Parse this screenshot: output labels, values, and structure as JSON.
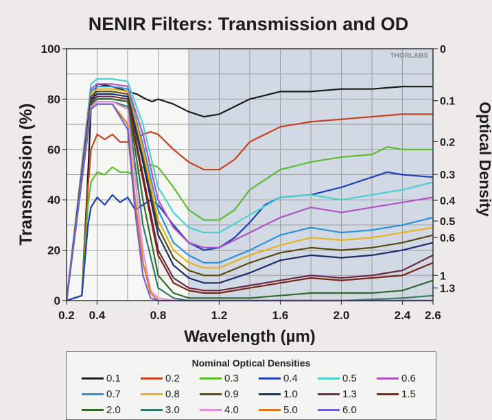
{
  "chart_data": {
    "type": "line",
    "title": "NENIR Filters: Transmission and OD",
    "xlabel": "Wavelength (µm)",
    "ylabel": "Transmission (%)",
    "y2label": "Optical Density",
    "watermark": "THORLABS",
    "xlim": [
      0.2,
      2.6
    ],
    "ylim": [
      0,
      100
    ],
    "x_ticks": [
      0.2,
      0.4,
      0.8,
      1.2,
      1.6,
      2.0,
      2.4,
      2.6
    ],
    "x_tick_labels": [
      "0.2",
      "0.4",
      "0.8",
      "1.2",
      "1.6",
      "2.0",
      "2.4",
      "2.6"
    ],
    "y_ticks": [
      0,
      20,
      40,
      60,
      80,
      100
    ],
    "y_tick_labels": [
      "0",
      "20",
      "40",
      "60",
      "80",
      "100"
    ],
    "od_ticks": [
      {
        "label": "0",
        "t": 100
      },
      {
        "label": "0.1",
        "t": 79.4
      },
      {
        "label": "0.2",
        "t": 63.1
      },
      {
        "label": "0.3",
        "t": 50.1
      },
      {
        "label": "0.4",
        "t": 39.8
      },
      {
        "label": "0.5",
        "t": 31.6
      },
      {
        "label": "0.6",
        "t": 25.1
      },
      {
        "label": "1",
        "t": 10
      },
      {
        "label": "1.3",
        "t": 5
      }
    ],
    "shaded_region_x": [
      1.0,
      2.6
    ],
    "grid": true,
    "legend_title": "Nominal Optical Densities",
    "legend_position": "bottom",
    "series": [
      {
        "name": "0.1",
        "color": "#1a1a1a",
        "x": [
          0.2,
          0.3,
          0.34,
          0.36,
          0.4,
          0.5,
          0.6,
          0.66,
          0.72,
          0.76,
          0.8,
          0.9,
          1.0,
          1.1,
          1.2,
          1.4,
          1.6,
          1.8,
          2.0,
          2.2,
          2.4,
          2.6
        ],
        "y": [
          0,
          2,
          50,
          76,
          86,
          85,
          83,
          82,
          80,
          79,
          80,
          78,
          75,
          73,
          74,
          80,
          83,
          83,
          84,
          84,
          85,
          85
        ]
      },
      {
        "name": "0.2",
        "color": "#c9401c",
        "x": [
          0.2,
          0.3,
          0.34,
          0.36,
          0.4,
          0.45,
          0.5,
          0.55,
          0.6,
          0.65,
          0.7,
          0.75,
          0.8,
          0.9,
          1.0,
          1.1,
          1.2,
          1.3,
          1.4,
          1.6,
          1.8,
          2.0,
          2.2,
          2.4,
          2.6
        ],
        "y": [
          0,
          2,
          45,
          60,
          66,
          64,
          66,
          63,
          63,
          64,
          66,
          67,
          66,
          60,
          55,
          52,
          52,
          56,
          63,
          69,
          71,
          72,
          73,
          74,
          74
        ]
      },
      {
        "name": "0.3",
        "color": "#5cbd2c",
        "x": [
          0.2,
          0.3,
          0.34,
          0.36,
          0.4,
          0.45,
          0.5,
          0.55,
          0.6,
          0.65,
          0.7,
          0.75,
          0.8,
          0.9,
          1.0,
          1.1,
          1.2,
          1.3,
          1.4,
          1.6,
          1.8,
          2.0,
          2.2,
          2.3,
          2.4,
          2.6
        ],
        "y": [
          0,
          2,
          38,
          47,
          51,
          50,
          53,
          51,
          51,
          50,
          53,
          54,
          53,
          45,
          36,
          32,
          32,
          36,
          44,
          52,
          55,
          57,
          58,
          61,
          60,
          60
        ]
      },
      {
        "name": "0.4",
        "color": "#1e3fb8",
        "x": [
          0.2,
          0.3,
          0.34,
          0.36,
          0.4,
          0.45,
          0.5,
          0.55,
          0.6,
          0.65,
          0.7,
          0.75,
          0.8,
          0.9,
          1.0,
          1.1,
          1.2,
          1.3,
          1.4,
          1.5,
          1.6,
          1.8,
          2.0,
          2.2,
          2.3,
          2.4,
          2.6
        ],
        "y": [
          0,
          2,
          30,
          37,
          41,
          38,
          42,
          39,
          41,
          36,
          38,
          40,
          38,
          30,
          23,
          20,
          21,
          25,
          31,
          38,
          41,
          42,
          45,
          49,
          51,
          50,
          49
        ]
      },
      {
        "name": "0.5",
        "color": "#4ccfcf",
        "x": [
          0.2,
          0.36,
          0.4,
          0.5,
          0.6,
          0.7,
          0.8,
          0.9,
          1.0,
          1.1,
          1.2,
          1.4,
          1.6,
          1.8,
          2.0,
          2.2,
          2.4,
          2.6
        ],
        "y": [
          0,
          86,
          88,
          88,
          87,
          70,
          45,
          35,
          29,
          27,
          27,
          34,
          41,
          42,
          40,
          42,
          44,
          47
        ]
      },
      {
        "name": "0.6",
        "color": "#b052c6",
        "x": [
          0.2,
          0.36,
          0.4,
          0.5,
          0.6,
          0.7,
          0.8,
          0.9,
          1.0,
          1.1,
          1.2,
          1.4,
          1.6,
          1.8,
          2.0,
          2.2,
          2.4,
          2.6
        ],
        "y": [
          0,
          84,
          86,
          86,
          85,
          66,
          40,
          29,
          23,
          21,
          21,
          27,
          33,
          37,
          35,
          37,
          39,
          41
        ]
      },
      {
        "name": "0.7",
        "color": "#2e90d8",
        "x": [
          0.2,
          0.36,
          0.4,
          0.5,
          0.6,
          0.7,
          0.8,
          0.9,
          1.0,
          1.1,
          1.2,
          1.4,
          1.6,
          1.8,
          2.0,
          2.2,
          2.4,
          2.6
        ],
        "y": [
          0,
          83,
          85,
          85,
          84,
          62,
          36,
          23,
          18,
          15,
          15,
          20,
          26,
          29,
          27,
          28,
          30,
          33
        ]
      },
      {
        "name": "0.8",
        "color": "#e7b21a",
        "x": [
          0.2,
          0.36,
          0.4,
          0.5,
          0.6,
          0.7,
          0.8,
          0.9,
          1.0,
          1.1,
          1.2,
          1.4,
          1.6,
          1.8,
          2.0,
          2.2,
          2.4,
          2.6
        ],
        "y": [
          0,
          82,
          84,
          84,
          83,
          60,
          32,
          20,
          15,
          13,
          13,
          18,
          22,
          25,
          24,
          25,
          27,
          29
        ]
      },
      {
        "name": "0.9",
        "color": "#5a4a12",
        "x": [
          0.2,
          0.36,
          0.4,
          0.5,
          0.6,
          0.7,
          0.8,
          0.9,
          1.0,
          1.1,
          1.2,
          1.4,
          1.6,
          1.8,
          2.0,
          2.2,
          2.4,
          2.6
        ],
        "y": [
          0,
          81,
          83,
          83,
          82,
          57,
          29,
          17,
          12,
          10,
          10,
          15,
          19,
          21,
          20,
          21,
          23,
          26
        ]
      },
      {
        "name": "1.0",
        "color": "#1b2a6b",
        "x": [
          0.2,
          0.36,
          0.4,
          0.5,
          0.6,
          0.7,
          0.8,
          0.9,
          1.0,
          1.1,
          1.2,
          1.4,
          1.6,
          1.8,
          2.0,
          2.2,
          2.4,
          2.6
        ],
        "y": [
          0,
          80,
          82,
          82,
          81,
          55,
          26,
          14,
          9,
          7,
          7,
          11,
          16,
          18,
          17,
          18,
          20,
          23
        ]
      },
      {
        "name": "1.3",
        "color": "#6a2a4a",
        "x": [
          0.2,
          0.36,
          0.4,
          0.5,
          0.6,
          0.7,
          0.8,
          0.9,
          1.0,
          1.1,
          1.2,
          1.4,
          1.6,
          1.8,
          2.0,
          2.2,
          2.4,
          2.6
        ],
        "y": [
          0,
          79,
          81,
          81,
          80,
          50,
          20,
          9,
          5,
          4,
          4,
          6,
          8,
          10,
          9,
          10,
          12,
          18
        ]
      },
      {
        "name": "1.5",
        "color": "#7a2410",
        "x": [
          0.2,
          0.36,
          0.4,
          0.5,
          0.6,
          0.7,
          0.8,
          0.9,
          1.0,
          1.1,
          1.2,
          1.4,
          1.6,
          1.8,
          2.0,
          2.2,
          2.4,
          2.6
        ],
        "y": [
          0,
          78,
          80,
          80,
          79,
          48,
          18,
          7,
          4,
          3,
          3,
          5,
          7,
          9,
          8,
          9,
          10,
          15
        ]
      },
      {
        "name": "2.0",
        "color": "#2f6a2a",
        "x": [
          0.2,
          0.36,
          0.4,
          0.5,
          0.6,
          0.7,
          0.8,
          0.9,
          1.0,
          1.2,
          1.4,
          1.6,
          1.8,
          2.0,
          2.2,
          2.4,
          2.6
        ],
        "y": [
          0,
          78,
          80,
          80,
          79,
          40,
          10,
          3,
          1,
          1,
          1,
          2,
          3,
          3,
          3,
          4,
          8
        ]
      },
      {
        "name": "3.0",
        "color": "#2f7a6c",
        "x": [
          0.2,
          0.36,
          0.4,
          0.5,
          0.6,
          0.7,
          0.8,
          0.9,
          1.0,
          1.2,
          1.6,
          2.0,
          2.4,
          2.6
        ],
        "y": [
          0,
          77,
          79,
          79,
          77,
          30,
          5,
          1,
          0,
          0,
          0,
          0,
          1,
          2
        ]
      },
      {
        "name": "4.0",
        "color": "#de8fde",
        "x": [
          0.2,
          0.36,
          0.4,
          0.5,
          0.6,
          0.7,
          0.75,
          0.8,
          0.9,
          1.2,
          2.6
        ],
        "y": [
          0,
          77,
          79,
          79,
          76,
          20,
          4,
          1,
          0,
          0,
          0
        ]
      },
      {
        "name": "5.0",
        "color": "#e2761a",
        "x": [
          0.2,
          0.36,
          0.4,
          0.5,
          0.6,
          0.65,
          0.7,
          0.75,
          0.8,
          1.2,
          2.6
        ],
        "y": [
          0,
          76,
          78,
          78,
          70,
          40,
          15,
          3,
          0,
          0,
          0
        ]
      },
      {
        "name": "6.0",
        "color": "#6b60d8",
        "x": [
          0.2,
          0.36,
          0.4,
          0.5,
          0.6,
          0.65,
          0.7,
          0.75,
          0.8,
          1.2,
          2.6
        ],
        "y": [
          0,
          76,
          78,
          78,
          68,
          35,
          10,
          1,
          0,
          0,
          0
        ]
      }
    ]
  }
}
